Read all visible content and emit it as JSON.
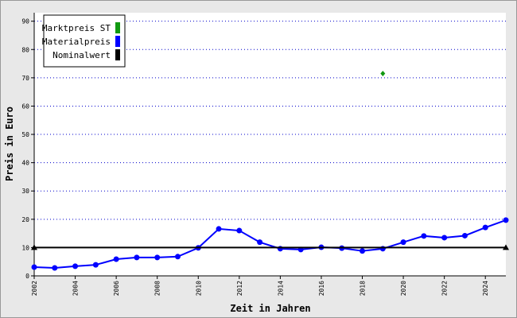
{
  "chart_data": {
    "type": "line",
    "x_label": "Zeit in Jahren",
    "y_label": "Preis in Euro",
    "xlim": [
      2002,
      2025
    ],
    "xticks": [
      2002,
      2004,
      2006,
      2008,
      2010,
      2012,
      2014,
      2016,
      2018,
      2020,
      2022,
      2024
    ],
    "ylim": [
      0,
      93
    ],
    "yticks": [
      0,
      10,
      20,
      30,
      40,
      50,
      60,
      70,
      80,
      90
    ],
    "grid": true,
    "legend": "top-left",
    "series": [
      {
        "name": "Marktpreis ST",
        "color": "#119911",
        "marker": "diamond",
        "x": [
          2019
        ],
        "values": [
          71.5
        ]
      },
      {
        "name": "Materialpreis",
        "color": "#0000ff",
        "marker": "circle",
        "x": [
          2002,
          2003,
          2004,
          2005,
          2006,
          2007,
          2008,
          2009,
          2010,
          2011,
          2012,
          2013,
          2014,
          2015,
          2016,
          2017,
          2018,
          2019,
          2020,
          2021,
          2022,
          2023,
          2024,
          2025
        ],
        "values": [
          3.1,
          2.8,
          3.4,
          3.9,
          5.9,
          6.5,
          6.5,
          6.8,
          9.9,
          16.6,
          16.0,
          11.9,
          9.6,
          9.3,
          10.1,
          9.8,
          8.8,
          9.6,
          11.9,
          14.1,
          13.5,
          14.2,
          17.1,
          19.7
        ]
      },
      {
        "name": "Nominalwert",
        "color": "#000000",
        "marker": "triangle",
        "x": [
          2002,
          2025
        ],
        "values": [
          10,
          10
        ]
      }
    ]
  }
}
